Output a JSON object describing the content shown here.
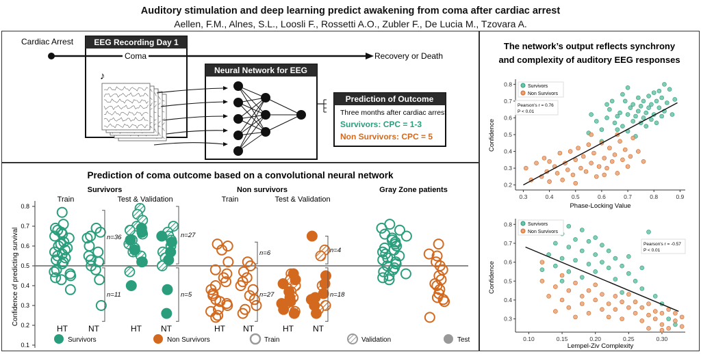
{
  "header": {
    "title": "Auditory stimulation and deep learning predict awakening from coma after cardiac arrest",
    "authors": "Aellen, F.M., Alnes, S.L., Loosli F., Rossetti A.O., Zubler F., De Lucia M., Tzovara A."
  },
  "colors": {
    "survivors": "#2a9d7c",
    "non_survivors": "#d2691e",
    "dark_box": "#2b2b2b",
    "gray": "#888888"
  },
  "diagram": {
    "cardiac_arrest": "Cardiac Arrest",
    "eeg_box_title": "EEG Recording Day 1",
    "coma": "Coma",
    "recovery": "Recovery or Death",
    "nn_title": "Neural Network for EEG",
    "pred_title": "Prediction of Outcome",
    "pred_sub": "Three months after cardiac arrest",
    "pred_survivors": "Survivors: CPC = 1-3",
    "pred_non": "Non Survivors: CPC = 5",
    "music_icon": "music-note-icon"
  },
  "bottom_panel": {
    "title": "Prediction of coma outcome based on a convolutional neural network",
    "groups": {
      "survivors": "Survivors",
      "non_survivors": "Non survivors",
      "gray_zone": "Gray Zone patients"
    },
    "sub": {
      "train": "Train",
      "test_val": "Test & Validation"
    },
    "ylabel": "Confidence of predicting survival",
    "yticks": [
      "0.8",
      "0.7",
      "0.6",
      "0.5",
      "0.4",
      "0.3",
      "0.2",
      "0.1"
    ],
    "xlabels": {
      "ht": "HT",
      "nt": "NT"
    },
    "counts": {
      "s_train_hi": "n=36",
      "s_train_lo": "n=11",
      "s_test_hi": "n=27",
      "s_test_lo": "n=5",
      "n_train_hi": "n=6",
      "n_train_lo": "n=27",
      "n_test_hi": "n=4",
      "n_test_lo": "n=18"
    },
    "legend": {
      "survivors": "Survivors",
      "non_survivors": "Non Survivors",
      "train": "Train",
      "validation": "Validation",
      "test": "Test"
    }
  },
  "right_panel": {
    "title_line1": "The network’s output reflects synchrony",
    "title_line2": "and complexity of auditory EEG responses",
    "plot1": {
      "legend_survivors": "Survivors",
      "legend_non": "Non Survivors",
      "stats_line1": "Pearson's r = 0.76",
      "stats_line2": "P < 0.01",
      "xlabel": "Phase-Locking Value",
      "ylabel": "Confidence",
      "xticks": [
        "0.3",
        "0.4",
        "0.5",
        "0.6",
        "0.7",
        "0.8",
        "0.9"
      ],
      "yticks": [
        "0.2",
        "0.3",
        "0.4",
        "0.5",
        "0.6",
        "0.7",
        "0.8"
      ]
    },
    "plot2": {
      "legend_survivors": "Survivors",
      "legend_non": "Non Survivors",
      "stats_line1": "Pearson's r = -0.57",
      "stats_line2": "P < 0.01",
      "xlabel": "Lempel-Ziv Complexity",
      "ylabel": "Confidence",
      "xticks": [
        "0.10",
        "0.15",
        "0.20",
        "0.25",
        "0.30"
      ],
      "yticks": [
        "0.3",
        "0.4",
        "0.5",
        "0.6",
        "0.7",
        "0.8"
      ]
    }
  },
  "chart_data": [
    {
      "type": "scatter",
      "xlabel": "Phase-Locking Value",
      "ylabel": "Confidence",
      "xlim": [
        0.27,
        0.92
      ],
      "ylim": [
        0.17,
        0.83
      ],
      "fit_line": {
        "x": [
          0.3,
          0.89
        ],
        "y": [
          0.2,
          0.69
        ]
      },
      "series": [
        {
          "name": "Survivors",
          "points": [
            [
              0.55,
              0.51
            ],
            [
              0.6,
              0.53
            ],
            [
              0.62,
              0.6
            ],
            [
              0.63,
              0.65
            ],
            [
              0.65,
              0.57
            ],
            [
              0.66,
              0.61
            ],
            [
              0.67,
              0.63
            ],
            [
              0.68,
              0.55
            ],
            [
              0.69,
              0.7
            ],
            [
              0.7,
              0.62
            ],
            [
              0.7,
              0.52
            ],
            [
              0.71,
              0.66
            ],
            [
              0.72,
              0.58
            ],
            [
              0.72,
              0.68
            ],
            [
              0.73,
              0.61
            ],
            [
              0.73,
              0.49
            ],
            [
              0.74,
              0.72
            ],
            [
              0.74,
              0.64
            ],
            [
              0.75,
              0.57
            ],
            [
              0.75,
              0.67
            ],
            [
              0.76,
              0.6
            ],
            [
              0.76,
              0.7
            ],
            [
              0.77,
              0.63
            ],
            [
              0.77,
              0.55
            ],
            [
              0.78,
              0.73
            ],
            [
              0.78,
              0.66
            ],
            [
              0.79,
              0.59
            ],
            [
              0.79,
              0.68
            ],
            [
              0.8,
              0.62
            ],
            [
              0.8,
              0.75
            ],
            [
              0.81,
              0.7
            ],
            [
              0.81,
              0.57
            ],
            [
              0.82,
              0.66
            ],
            [
              0.82,
              0.76
            ],
            [
              0.83,
              0.61
            ],
            [
              0.83,
              0.72
            ],
            [
              0.84,
              0.8
            ],
            [
              0.84,
              0.64
            ],
            [
              0.85,
              0.69
            ],
            [
              0.86,
              0.77
            ],
            [
              0.87,
              0.62
            ],
            [
              0.88,
              0.71
            ],
            [
              0.68,
              0.74
            ],
            [
              0.64,
              0.7
            ],
            [
              0.66,
              0.53
            ],
            [
              0.7,
              0.78
            ],
            [
              0.6,
              0.46
            ],
            [
              0.58,
              0.58
            ],
            [
              0.62,
              0.68
            ],
            [
              0.56,
              0.62
            ]
          ]
        },
        {
          "name": "Non Survivors",
          "points": [
            [
              0.31,
              0.3
            ],
            [
              0.33,
              0.23
            ],
            [
              0.35,
              0.33
            ],
            [
              0.37,
              0.25
            ],
            [
              0.38,
              0.36
            ],
            [
              0.39,
              0.28
            ],
            [
              0.4,
              0.34
            ],
            [
              0.4,
              0.22
            ],
            [
              0.42,
              0.31
            ],
            [
              0.43,
              0.27
            ],
            [
              0.44,
              0.39
            ],
            [
              0.45,
              0.23
            ],
            [
              0.46,
              0.33
            ],
            [
              0.47,
              0.29
            ],
            [
              0.48,
              0.4
            ],
            [
              0.49,
              0.26
            ],
            [
              0.5,
              0.35
            ],
            [
              0.51,
              0.42
            ],
            [
              0.52,
              0.3
            ],
            [
              0.53,
              0.37
            ],
            [
              0.54,
              0.28
            ],
            [
              0.55,
              0.44
            ],
            [
              0.56,
              0.33
            ],
            [
              0.57,
              0.39
            ],
            [
              0.58,
              0.25
            ],
            [
              0.59,
              0.31
            ],
            [
              0.6,
              0.45
            ],
            [
              0.61,
              0.36
            ],
            [
              0.62,
              0.3
            ],
            [
              0.63,
              0.42
            ],
            [
              0.64,
              0.34
            ],
            [
              0.65,
              0.38
            ],
            [
              0.66,
              0.27
            ],
            [
              0.67,
              0.46
            ],
            [
              0.68,
              0.35
            ],
            [
              0.69,
              0.41
            ],
            [
              0.7,
              0.31
            ],
            [
              0.71,
              0.37
            ],
            [
              0.72,
              0.48
            ],
            [
              0.74,
              0.4
            ],
            [
              0.76,
              0.34
            ],
            [
              0.66,
              0.5
            ],
            [
              0.56,
              0.5
            ],
            [
              0.61,
              0.26
            ],
            [
              0.5,
              0.21
            ]
          ]
        }
      ]
    },
    {
      "type": "scatter",
      "xlabel": "Lempel-Ziv Complexity",
      "ylabel": "Confidence",
      "xlim": [
        0.08,
        0.335
      ],
      "ylim": [
        0.23,
        0.83
      ],
      "fit_line": {
        "x": [
          0.095,
          0.325
        ],
        "y": [
          0.68,
          0.34
        ]
      },
      "series": [
        {
          "name": "Survivors",
          "points": [
            [
              0.13,
              0.64
            ],
            [
              0.14,
              0.7
            ],
            [
              0.14,
              0.58
            ],
            [
              0.15,
              0.75
            ],
            [
              0.15,
              0.62
            ],
            [
              0.16,
              0.79
            ],
            [
              0.16,
              0.68
            ],
            [
              0.16,
              0.55
            ],
            [
              0.17,
              0.72
            ],
            [
              0.17,
              0.61
            ],
            [
              0.18,
              0.66
            ],
            [
              0.18,
              0.52
            ],
            [
              0.19,
              0.71
            ],
            [
              0.19,
              0.59
            ],
            [
              0.2,
              0.64
            ],
            [
              0.2,
              0.55
            ],
            [
              0.21,
              0.69
            ],
            [
              0.21,
              0.6
            ],
            [
              0.22,
              0.57
            ],
            [
              0.22,
              0.66
            ],
            [
              0.23,
              0.62
            ],
            [
              0.23,
              0.51
            ],
            [
              0.24,
              0.58
            ],
            [
              0.25,
              0.54
            ],
            [
              0.25,
              0.63
            ],
            [
              0.26,
              0.5
            ],
            [
              0.27,
              0.57
            ],
            [
              0.27,
              0.46
            ],
            [
              0.28,
              0.76
            ],
            [
              0.29,
              0.42
            ],
            [
              0.3,
              0.38
            ],
            [
              0.31,
              0.3
            ],
            [
              0.32,
              0.27
            ],
            [
              0.15,
              0.5
            ],
            [
              0.18,
              0.77
            ],
            [
              0.2,
              0.73
            ],
            [
              0.12,
              0.56
            ],
            [
              0.24,
              0.44
            ]
          ]
        },
        {
          "name": "Non Survivors",
          "points": [
            [
              0.12,
              0.5
            ],
            [
              0.13,
              0.42
            ],
            [
              0.14,
              0.47
            ],
            [
              0.14,
              0.34
            ],
            [
              0.15,
              0.4
            ],
            [
              0.15,
              0.53
            ],
            [
              0.16,
              0.36
            ],
            [
              0.16,
              0.45
            ],
            [
              0.17,
              0.49
            ],
            [
              0.17,
              0.31
            ],
            [
              0.18,
              0.42
            ],
            [
              0.18,
              0.38
            ],
            [
              0.19,
              0.45
            ],
            [
              0.19,
              0.33
            ],
            [
              0.2,
              0.4
            ],
            [
              0.2,
              0.48
            ],
            [
              0.21,
              0.35
            ],
            [
              0.21,
              0.43
            ],
            [
              0.22,
              0.38
            ],
            [
              0.22,
              0.31
            ],
            [
              0.23,
              0.42
            ],
            [
              0.23,
              0.35
            ],
            [
              0.24,
              0.39
            ],
            [
              0.24,
              0.3
            ],
            [
              0.25,
              0.36
            ],
            [
              0.25,
              0.43
            ],
            [
              0.26,
              0.33
            ],
            [
              0.26,
              0.39
            ],
            [
              0.27,
              0.29
            ],
            [
              0.27,
              0.36
            ],
            [
              0.28,
              0.32
            ],
            [
              0.28,
              0.38
            ],
            [
              0.29,
              0.3
            ],
            [
              0.29,
              0.34
            ],
            [
              0.3,
              0.27
            ],
            [
              0.3,
              0.33
            ],
            [
              0.31,
              0.35
            ],
            [
              0.31,
              0.25
            ],
            [
              0.32,
              0.29
            ],
            [
              0.32,
              0.33
            ],
            [
              0.33,
              0.26
            ],
            [
              0.33,
              0.31
            ],
            [
              0.3,
              0.24
            ],
            [
              0.28,
              0.25
            ],
            [
              0.12,
              0.6
            ]
          ]
        }
      ]
    }
  ]
}
